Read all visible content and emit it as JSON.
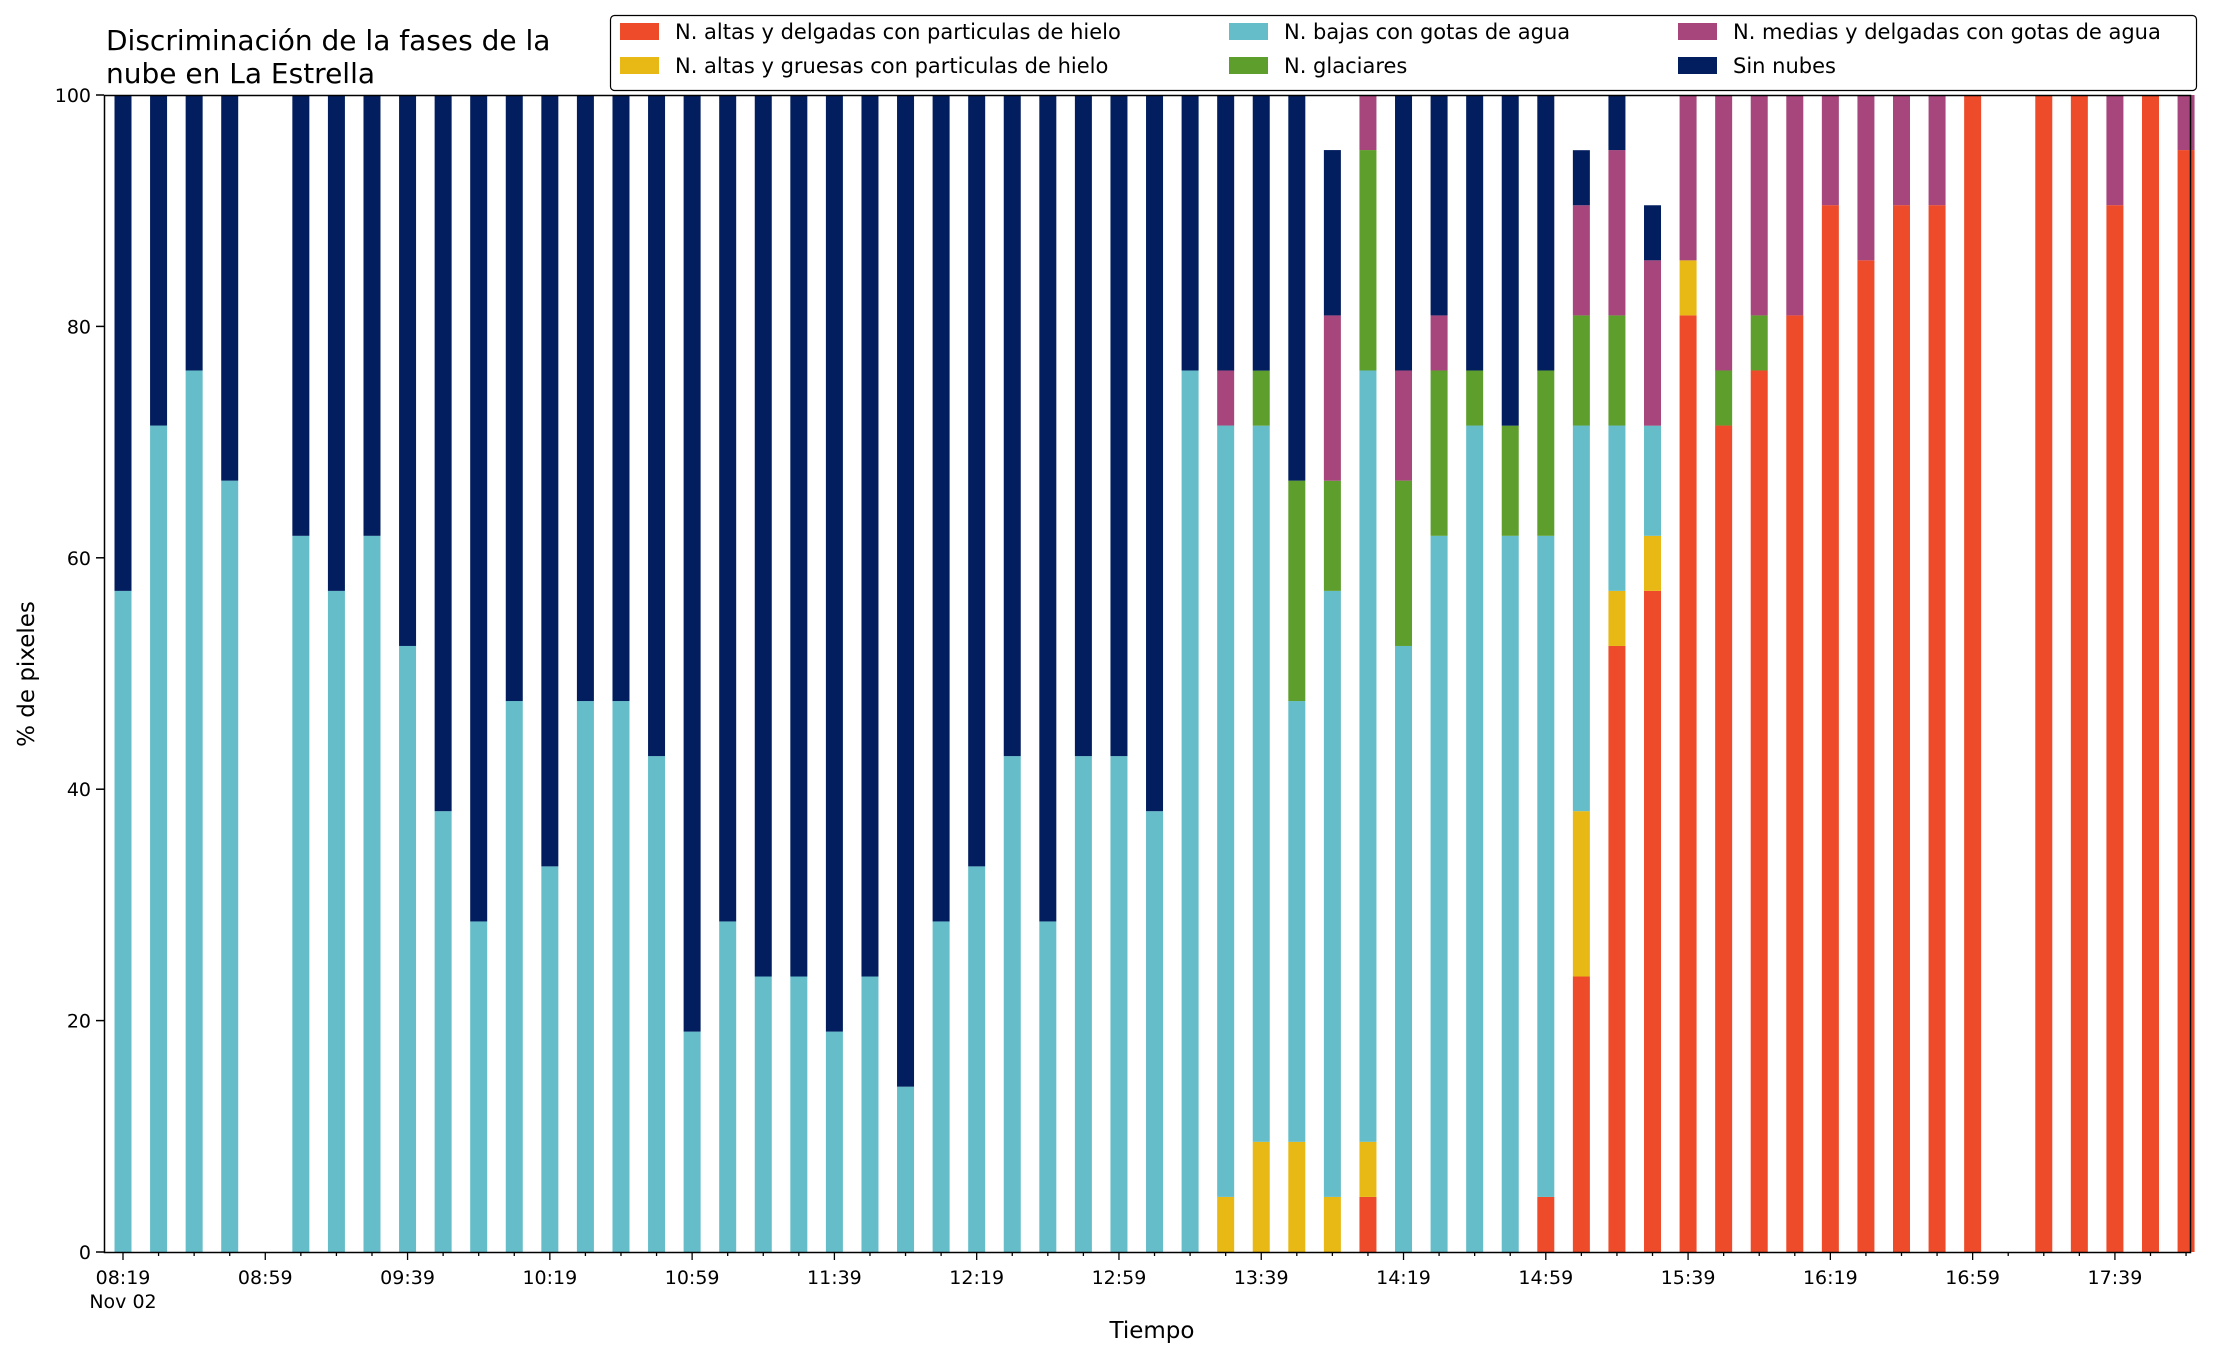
{
  "chart_data": {
    "type": "bar",
    "stacked": true,
    "title_lines": [
      "Discriminación de la fases de la",
      "nube en La Estrella"
    ],
    "xlabel": "Tiempo",
    "ylabel": "% de pixeles",
    "ylim": [
      0,
      100
    ],
    "yticks": [
      0,
      20,
      40,
      60,
      80,
      100
    ],
    "grid": false,
    "legend_position": "top-right",
    "x_start": "08:19",
    "x_interval_minutes": 10,
    "x_tick_labels": [
      {
        "index": 0,
        "label": "08:19",
        "sublabel": "Nov 02"
      },
      {
        "index": 4,
        "label": "08:59"
      },
      {
        "index": 8,
        "label": "09:39"
      },
      {
        "index": 12,
        "label": "10:19"
      },
      {
        "index": 16,
        "label": "10:59"
      },
      {
        "index": 20,
        "label": "11:39"
      },
      {
        "index": 24,
        "label": "12:19"
      },
      {
        "index": 28,
        "label": "12:59"
      },
      {
        "index": 32,
        "label": "13:39"
      },
      {
        "index": 36,
        "label": "14:19"
      },
      {
        "index": 40,
        "label": "14:59"
      },
      {
        "index": 44,
        "label": "15:39"
      },
      {
        "index": 48,
        "label": "16:19"
      },
      {
        "index": 52,
        "label": "16:59"
      },
      {
        "index": 56,
        "label": "17:39"
      }
    ],
    "x_minor_tick_count": 59,
    "series": [
      {
        "name": "N. altas y delgadas con particulas de hielo",
        "color": "#ee4b2b",
        "values": [
          0,
          0,
          0,
          0,
          0,
          0,
          0,
          0,
          0,
          0,
          0,
          0,
          0,
          0,
          0,
          0,
          0,
          0,
          0,
          0,
          0,
          0,
          0,
          0,
          0,
          0,
          0,
          0,
          0,
          0,
          0,
          0,
          0,
          0,
          0,
          4.76,
          0,
          0,
          0,
          0,
          4.76,
          23.81,
          52.38,
          57.14,
          80.95,
          71.43,
          76.19,
          80.95,
          90.48,
          85.71,
          90.48,
          90.48,
          100,
          0,
          100,
          100,
          90.48,
          100,
          95.24
        ]
      },
      {
        "name": "N. altas y gruesas con particulas de hielo",
        "color": "#e8b814",
        "values": [
          0,
          0,
          0,
          0,
          0,
          0,
          0,
          0,
          0,
          0,
          0,
          0,
          0,
          0,
          0,
          0,
          0,
          0,
          0,
          0,
          0,
          0,
          0,
          0,
          0,
          0,
          0,
          0,
          0,
          0,
          0,
          4.76,
          9.52,
          9.52,
          4.76,
          4.76,
          0,
          0,
          0,
          0,
          0,
          14.29,
          4.76,
          4.76,
          4.76,
          0,
          0,
          0,
          0,
          0,
          0,
          0,
          0,
          0,
          0,
          0,
          0,
          0,
          0
        ]
      },
      {
        "name": "N. bajas con gotas de agua",
        "color": "#65bdc9",
        "values": [
          57.14,
          71.43,
          76.19,
          66.67,
          0,
          61.9,
          57.14,
          61.9,
          52.38,
          38.1,
          28.57,
          47.62,
          33.33,
          47.62,
          47.62,
          42.86,
          19.05,
          28.57,
          23.81,
          23.81,
          19.05,
          23.81,
          14.29,
          28.57,
          33.33,
          42.86,
          28.57,
          42.86,
          42.86,
          38.1,
          76.19,
          66.67,
          61.9,
          38.1,
          52.38,
          66.67,
          52.38,
          61.9,
          71.43,
          61.9,
          57.14,
          33.33,
          14.29,
          9.52,
          0,
          0,
          0,
          0,
          0,
          0,
          0,
          0,
          0,
          0,
          0,
          0,
          0,
          0,
          0
        ]
      },
      {
        "name": "N. glaciares",
        "color": "#5e9e2c",
        "values": [
          0,
          0,
          0,
          0,
          0,
          0,
          0,
          0,
          0,
          0,
          0,
          0,
          0,
          0,
          0,
          0,
          0,
          0,
          0,
          0,
          0,
          0,
          0,
          0,
          0,
          0,
          0,
          0,
          0,
          0,
          0,
          0,
          4.76,
          19.05,
          9.52,
          19.05,
          14.29,
          14.29,
          4.76,
          9.52,
          14.29,
          9.52,
          9.52,
          0,
          0,
          4.76,
          4.76,
          0,
          0,
          0,
          0,
          0,
          0,
          0,
          0,
          0,
          0,
          0,
          0
        ]
      },
      {
        "name": "N. medias y delgadas con gotas de agua",
        "color": "#a6467c",
        "values": [
          0,
          0,
          0,
          0,
          0,
          0,
          0,
          0,
          0,
          0,
          0,
          0,
          0,
          0,
          0,
          0,
          0,
          0,
          0,
          0,
          0,
          0,
          0,
          0,
          0,
          0,
          0,
          0,
          0,
          0,
          0,
          4.76,
          0,
          0,
          14.29,
          4.76,
          9.52,
          4.76,
          0,
          0,
          0,
          9.52,
          14.29,
          14.29,
          14.29,
          23.81,
          19.05,
          19.05,
          9.52,
          14.29,
          9.52,
          9.52,
          0,
          0,
          0,
          0,
          9.52,
          0,
          4.76
        ]
      },
      {
        "name": "Sin nubes",
        "color": "#021e5f",
        "values": [
          42.86,
          28.57,
          23.81,
          33.33,
          0,
          38.1,
          42.86,
          38.1,
          47.62,
          61.9,
          71.43,
          52.38,
          66.67,
          52.38,
          52.38,
          57.14,
          80.95,
          71.43,
          76.19,
          76.19,
          80.95,
          76.19,
          85.71,
          71.43,
          66.67,
          57.14,
          71.43,
          57.14,
          57.14,
          61.9,
          23.81,
          23.81,
          23.81,
          33.33,
          14.29,
          4.76,
          23.81,
          19.05,
          23.81,
          28.57,
          23.81,
          4.76,
          4.76,
          4.76,
          0,
          0,
          0,
          0,
          0,
          0,
          0,
          0,
          0,
          0,
          0,
          0,
          0,
          0,
          0
        ]
      }
    ]
  }
}
